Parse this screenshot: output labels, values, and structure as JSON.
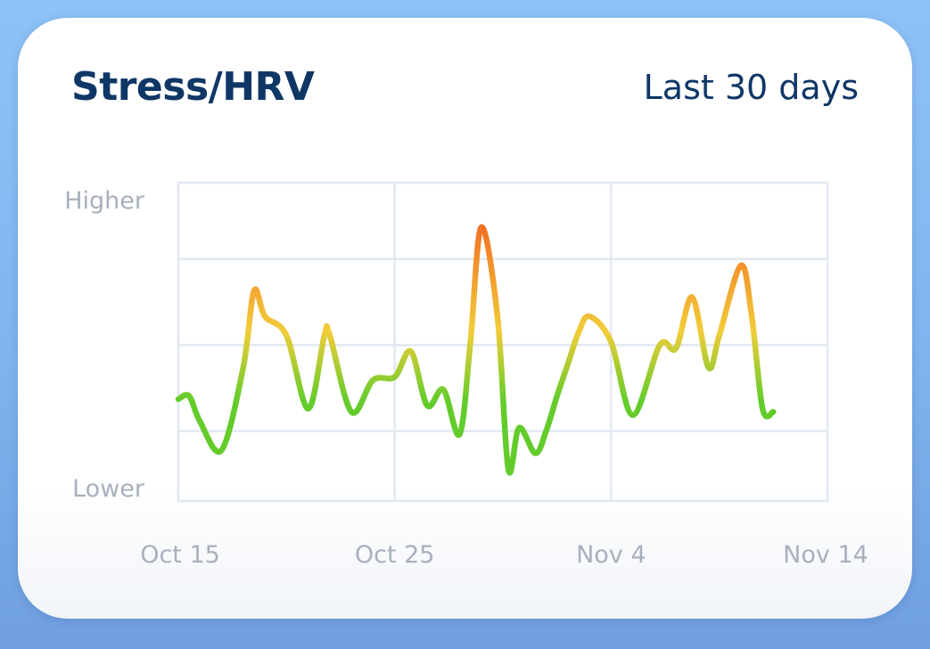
{
  "card": {
    "title": "Stress/HRV",
    "range_label": "Last 30 days"
  },
  "colors": {
    "title": "#0f3766",
    "grid": "#e1e8f1",
    "tick_label": "#a8b0bd",
    "low_stress": "#63cc2b",
    "mid_stress": "#f2cc3a",
    "high_stress": "#f06a22"
  },
  "chart_data": {
    "type": "line",
    "title": "Stress/HRV",
    "y_tick_labels": [
      "Lower",
      "Higher"
    ],
    "x_tick_labels": [
      "Oct 15",
      "Oct 25",
      "Nov 4",
      "Nov 14"
    ],
    "x_tick_dates": [
      "2023-10-15",
      "2023-10-25",
      "2023-11-04",
      "2023-11-14"
    ],
    "xlim": [
      "2023-10-15",
      "2023-11-14"
    ],
    "ylim": [
      0,
      1
    ],
    "grid": true,
    "legend": "none",
    "series": [
      {
        "points": [
          [
            "2023-10-15",
            0.32
          ],
          [
            "2023-10-15T12:00",
            0.33
          ],
          [
            "2023-10-16",
            0.25
          ],
          [
            "2023-10-17",
            0.16
          ],
          [
            "2023-10-18",
            0.42
          ],
          [
            "2023-10-18T12:00",
            0.66
          ],
          [
            "2023-10-19",
            0.58
          ],
          [
            "2023-10-20",
            0.52
          ],
          [
            "2023-10-21",
            0.29
          ],
          [
            "2023-10-21T18:00",
            0.52
          ],
          [
            "2023-10-22",
            0.52
          ],
          [
            "2023-10-23",
            0.28
          ],
          [
            "2023-10-24",
            0.38
          ],
          [
            "2023-10-25",
            0.39
          ],
          [
            "2023-10-25T18:00",
            0.47
          ],
          [
            "2023-10-26T12:00",
            0.3
          ],
          [
            "2023-10-27T06:00",
            0.35
          ],
          [
            "2023-10-28",
            0.21
          ],
          [
            "2023-10-28T12:00",
            0.5
          ],
          [
            "2023-10-29",
            0.86
          ],
          [
            "2023-10-29T18:00",
            0.58
          ],
          [
            "2023-10-30T06:00",
            0.1
          ],
          [
            "2023-10-30T18:00",
            0.23
          ],
          [
            "2023-10-31T12:00",
            0.15
          ],
          [
            "2023-11-01",
            0.22
          ],
          [
            "2023-11-01T12:00",
            0.33
          ],
          [
            "2023-11-02",
            0.43
          ],
          [
            "2023-11-02T12:00",
            0.53
          ],
          [
            "2023-11-03",
            0.58
          ],
          [
            "2023-11-04",
            0.5
          ],
          [
            "2023-11-05",
            0.27
          ],
          [
            "2023-11-06T06:00",
            0.49
          ],
          [
            "2023-11-07",
            0.48
          ],
          [
            "2023-11-07T18:00",
            0.64
          ],
          [
            "2023-11-08T12:00",
            0.42
          ],
          [
            "2023-11-09",
            0.52
          ],
          [
            "2023-11-10",
            0.74
          ],
          [
            "2023-11-10T12:00",
            0.58
          ],
          [
            "2023-11-11",
            0.29
          ],
          [
            "2023-11-11T12:00",
            0.28
          ]
        ]
      }
    ]
  }
}
